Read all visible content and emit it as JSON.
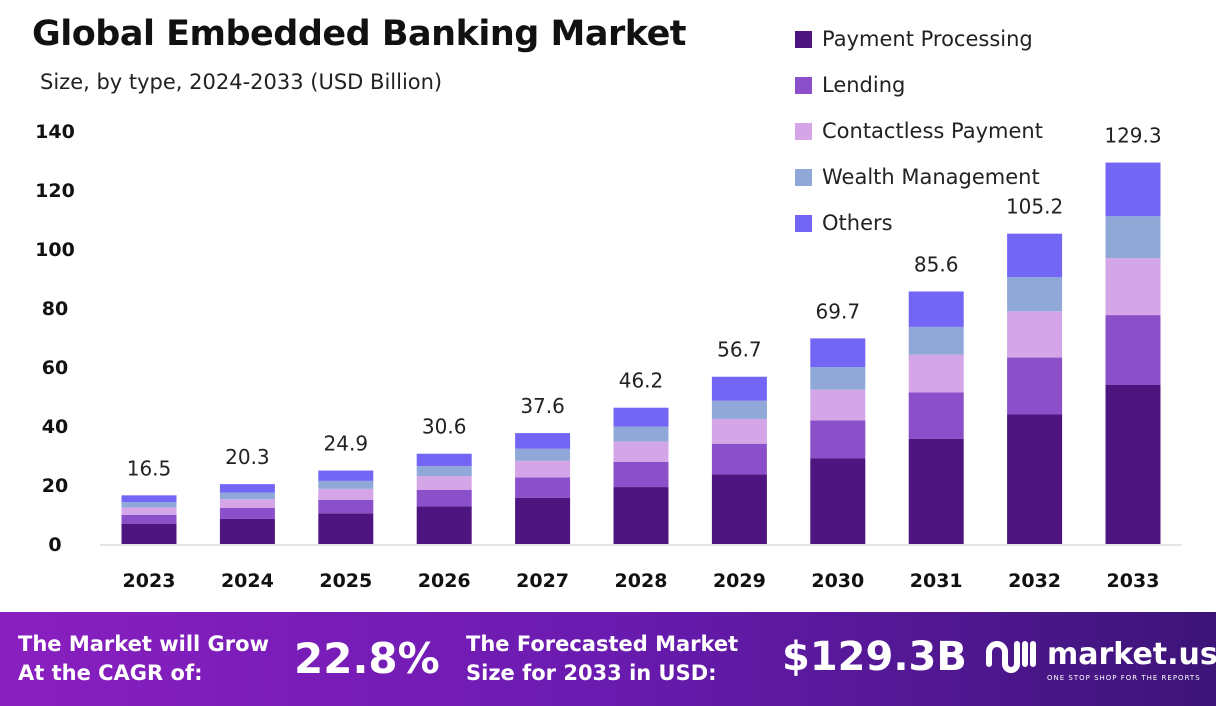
{
  "chart_data": {
    "type": "bar",
    "stacked": true,
    "title": "Global Embedded Banking Market",
    "subtitle": "Size, by type, 2024-2033 (USD Billion)",
    "categories": [
      "2023",
      "2024",
      "2025",
      "2026",
      "2027",
      "2028",
      "2029",
      "2030",
      "2031",
      "2032",
      "2033"
    ],
    "totals": [
      "16.5",
      "20.3",
      "24.9",
      "30.6",
      "37.6",
      "46.2",
      "56.7",
      "69.7",
      "85.6",
      "105.2",
      "129.3"
    ],
    "series": [
      {
        "name": "Payment Processing",
        "color": "#4e1580",
        "values": [
          6.9,
          8.5,
          10.4,
          12.8,
          15.7,
          19.3,
          23.6,
          29.1,
          35.7,
          43.9,
          53.9
        ]
      },
      {
        "name": "Lending",
        "color": "#8a4fc9",
        "values": [
          3.0,
          3.7,
          4.6,
          5.6,
          6.9,
          8.5,
          10.4,
          12.8,
          15.7,
          19.3,
          23.7
        ]
      },
      {
        "name": "Contactless Payment",
        "color": "#d4a6e8",
        "values": [
          2.5,
          3.0,
          3.7,
          4.6,
          5.6,
          6.9,
          8.4,
          10.4,
          12.8,
          15.7,
          19.3
        ]
      },
      {
        "name": "Wealth Management",
        "color": "#8fa8d8",
        "values": [
          1.8,
          2.2,
          2.7,
          3.4,
          4.1,
          5.1,
          6.2,
          7.7,
          9.4,
          11.6,
          14.2
        ]
      },
      {
        "name": "Others",
        "color": "#7466f5",
        "values": [
          2.3,
          2.9,
          3.5,
          4.2,
          5.3,
          6.4,
          8.1,
          9.7,
          12.0,
          14.7,
          18.2
        ]
      }
    ],
    "yticks": [
      "0",
      "20",
      "40",
      "60",
      "80",
      "100",
      "120",
      "140"
    ],
    "ylim": [
      0,
      140
    ],
    "grid": false,
    "legend": "top-right"
  },
  "footer": {
    "cagr_label_1": "The Market will Grow",
    "cagr_label_2": "At the CAGR of:",
    "cagr_value": "22.8%",
    "forecast_label_1": "The Forecasted Market",
    "forecast_label_2": "Size for 2033 in USD:",
    "forecast_value": "$129.3B",
    "logo_name": "market.us",
    "logo_tagline": "ONE STOP SHOP FOR THE REPORTS"
  }
}
